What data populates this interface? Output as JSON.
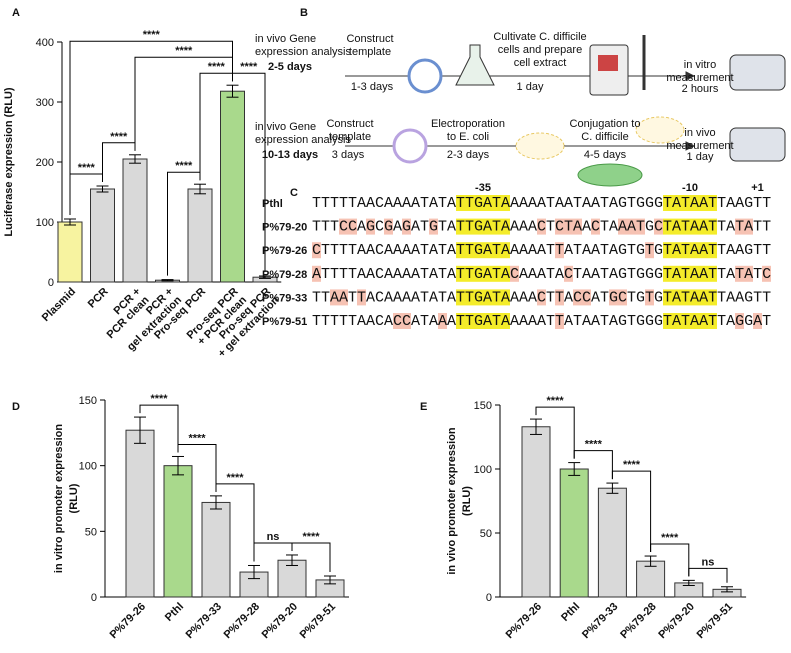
{
  "panel_labels": [
    "A",
    "B",
    "C",
    "D",
    "E"
  ],
  "chart_data": [
    {
      "type": "bar",
      "ylabel": "Luciferase expression (RLU)",
      "categories": [
        "Plasmid",
        "PCR",
        "PCR +\nPCR clean",
        "PCR +\ngel extraction",
        "Pro-seq PCR",
        "Pro-seq PCR\n+ PCR clean",
        "Pro-seq PCR\n+ gel extraction"
      ],
      "values": [
        100,
        155,
        205,
        3,
        155,
        318,
        8
      ],
      "errors": [
        5,
        5,
        7,
        1,
        8,
        10,
        2
      ],
      "colors": [
        "#f7f3a0",
        "#d9d9d9",
        "#d9d9d9",
        "#d9d9d9",
        "#d9d9d9",
        "#a9d98c",
        "#d9d9d9"
      ],
      "ylim": [
        0,
        400
      ],
      "yticks": [
        0,
        100,
        200,
        300,
        400
      ],
      "comparisons": [
        {
          "from": "Plasmid",
          "to": "PCR",
          "label": "****"
        },
        {
          "from": "PCR",
          "to": "PCR +\nPCR clean",
          "label": "****"
        },
        {
          "from": "PCR +\ngel extraction",
          "to": "Pro-seq PCR",
          "label": "****"
        },
        {
          "from": "Pro-seq PCR",
          "to": "Pro-seq PCR\n+ PCR clean",
          "label": "****"
        },
        {
          "from": "Pro-seq PCR\n+ PCR clean",
          "to": "Pro-seq PCR\n+ gel extraction",
          "label": "****"
        },
        {
          "from": "PCR +\nPCR clean",
          "to": "Pro-seq PCR\n+ PCR clean",
          "label": "****"
        },
        {
          "from": "Plasmid",
          "to": "Pro-seq PCR\n+ PCR clean",
          "label": "****"
        }
      ]
    },
    {
      "type": "bar",
      "ylabel": "in vitro promoter expression\n(RLU)",
      "categories": [
        "P%79-26",
        "Pthl",
        "P%79-33",
        "P%79-28",
        "P%79-20",
        "P%79-51"
      ],
      "values": [
        127,
        100,
        72,
        19,
        28,
        13
      ],
      "errors": [
        10,
        7,
        5,
        5,
        4,
        3
      ],
      "colors": [
        "#d9d9d9",
        "#a9d98c",
        "#d9d9d9",
        "#d9d9d9",
        "#d9d9d9",
        "#d9d9d9"
      ],
      "ylim": [
        0,
        150
      ],
      "yticks": [
        0,
        50,
        100,
        150
      ],
      "comparisons": [
        {
          "from": "P%79-26",
          "to": "Pthl",
          "label": "****"
        },
        {
          "from": "Pthl",
          "to": "P%79-33",
          "label": "****"
        },
        {
          "from": "P%79-33",
          "to": "P%79-28",
          "label": "****"
        },
        {
          "from": "P%79-28",
          "to": "P%79-20",
          "label": "ns"
        },
        {
          "from": "P%79-20",
          "to": "P%79-51",
          "label": "****"
        }
      ]
    },
    {
      "type": "bar",
      "ylabel": "in vivo promoter expression\n(RLU)",
      "categories": [
        "P%79-26",
        "Pthl",
        "P%79-33",
        "P%79-28",
        "P%79-20",
        "P%79-51"
      ],
      "values": [
        133,
        100,
        85,
        28,
        11,
        6
      ],
      "errors": [
        6,
        5,
        4,
        4,
        2,
        2
      ],
      "colors": [
        "#d9d9d9",
        "#a9d98c",
        "#d9d9d9",
        "#d9d9d9",
        "#d9d9d9",
        "#d9d9d9"
      ],
      "ylim": [
        0,
        150
      ],
      "yticks": [
        0,
        50,
        100,
        150
      ],
      "comparisons": [
        {
          "from": "P%79-26",
          "to": "Pthl",
          "label": "****"
        },
        {
          "from": "Pthl",
          "to": "P%79-33",
          "label": "****"
        },
        {
          "from": "P%79-33",
          "to": "P%79-28",
          "label": "****"
        },
        {
          "from": "P%79-28",
          "to": "P%79-20",
          "label": "****"
        },
        {
          "from": "P%79-20",
          "to": "P%79-51",
          "label": "ns"
        }
      ]
    }
  ],
  "workflow": {
    "rows": [
      {
        "title": "in vivo Gene\nexpression analysis",
        "duration": "2-5 days",
        "steps": [
          {
            "label": "Construct\ntemplate",
            "time": "1-3 days"
          },
          {
            "label": "Cultivate C. difficile\ncells and prepare\ncell extract",
            "time": "1 day"
          },
          {
            "label": "in vitro\nmeasurement",
            "time": "2 hours"
          }
        ]
      },
      {
        "title": "in vivo Gene\nexpression analysis",
        "duration": "10-13 days",
        "steps": [
          {
            "label": "Construct\ntemplate",
            "time": "3 days"
          },
          {
            "label": "Electroporation\nto E. coli",
            "time": "2-3 days"
          },
          {
            "label": "Conjugation to\nC. difficile",
            "time": "4-5 days"
          },
          {
            "label": "in vivo\nmeasurement",
            "time": "1 day"
          }
        ]
      }
    ]
  },
  "alignment": {
    "positions": [
      "-35",
      "-10",
      "+1"
    ],
    "rows": [
      {
        "name": "Pthl",
        "sequence": "TTTTTAACAAAATATATTGATAAAAATAATAATAGTGGGTATAATTAAGTT"
      },
      {
        "name": "P%79-20",
        "sequence": "TTTCCAGCGAGATGTATTGATAAAACTCTAACTAAATGCTATAATTATATT"
      },
      {
        "name": "P%79-26",
        "sequence": "CTTTTAACAAAATATATTGATAAAAATTATAATAGTGTGTATAATTAAGTT"
      },
      {
        "name": "P%79-28",
        "sequence": "ATTTTAACAAAATATATTGATACAAATACTAATAGTGGGTATAATTATATC"
      },
      {
        "name": "P%79-33",
        "sequence": "TTAATTACAAAATATATTGATAAAACTTACCATGCTGTGTATAATTAAGTT"
      },
      {
        "name": "P%79-51",
        "sequence": "TTTTTAACACCATAAATTGATAAAAATTATAATAGTGGGTATAATTAGGAT"
      }
    ]
  }
}
